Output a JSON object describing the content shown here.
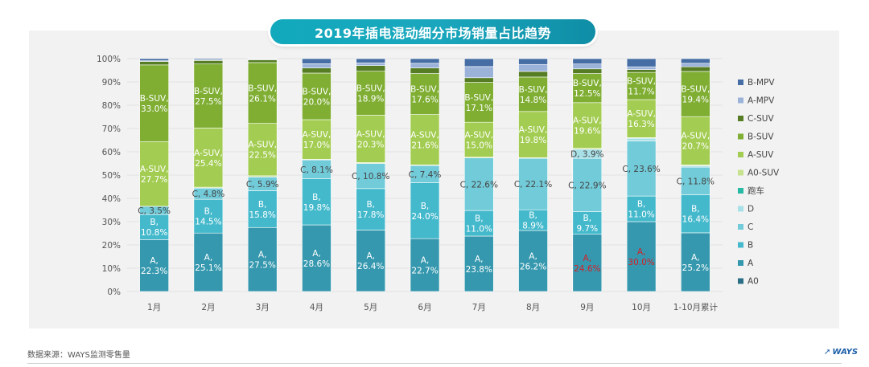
{
  "title": "2019年插电混动细分市场销量占比趋势",
  "source": "数据来源：WAYS监测零售量",
  "logo": "WAYS",
  "chart_data": {
    "type": "bar",
    "stacked": true,
    "normalized": true,
    "title": "2019年插电混动细分市场销量占比趋势",
    "xlabel": "",
    "ylabel": "",
    "ylim": [
      0,
      100
    ],
    "yticks": [
      "0%",
      "10%",
      "20%",
      "30%",
      "40%",
      "50%",
      "60%",
      "70%",
      "80%",
      "90%",
      "100%"
    ],
    "categories": [
      "1月",
      "2月",
      "3月",
      "4月",
      "5月",
      "6月",
      "7月",
      "8月",
      "9月",
      "10月",
      "1-10月累计"
    ],
    "legend_position": "right",
    "legend": [
      "B-MPV",
      "A-MPV",
      "C-SUV",
      "B-SUV",
      "A-SUV",
      "A0-SUV",
      "跑车",
      "D",
      "C",
      "B",
      "A",
      "A0"
    ],
    "series": [
      {
        "name": "A0",
        "color": "#2b6f86",
        "values": [
          0,
          0,
          0,
          0,
          0,
          0,
          0,
          0,
          0,
          0,
          0
        ]
      },
      {
        "name": "A",
        "color": "#3598ae",
        "values": [
          22.3,
          25.1,
          27.5,
          28.6,
          26.4,
          22.7,
          23.8,
          26.2,
          24.6,
          30.0,
          25.2
        ]
      },
      {
        "name": "B",
        "color": "#45b9cc",
        "values": [
          10.8,
          14.5,
          15.8,
          19.8,
          17.8,
          24.0,
          11.0,
          8.9,
          9.7,
          11.0,
          16.4
        ]
      },
      {
        "name": "C",
        "color": "#72cbd9",
        "values": [
          3.5,
          4.8,
          5.9,
          8.1,
          10.8,
          7.4,
          22.6,
          22.1,
          22.9,
          23.6,
          11.8
        ]
      },
      {
        "name": "D",
        "color": "#a8e0e8",
        "values": [
          0,
          0,
          0,
          0,
          0,
          0,
          0,
          0,
          3.9,
          1.2,
          0.6
        ]
      },
      {
        "name": "跑车",
        "color": "#26b9a3",
        "values": [
          0,
          0,
          0,
          0,
          0,
          0,
          0,
          0,
          0,
          0,
          0
        ]
      },
      {
        "name": "A0-SUV",
        "color": "#c7e28c",
        "values": [
          0,
          0.4,
          0.5,
          0.3,
          0.4,
          0.3,
          0.3,
          0.3,
          0.4,
          0.3,
          0.4
        ]
      },
      {
        "name": "A-SUV",
        "color": "#a3cc52",
        "values": [
          27.7,
          25.4,
          22.5,
          17.0,
          20.3,
          21.6,
          15.0,
          19.8,
          19.6,
          16.3,
          20.7
        ]
      },
      {
        "name": "B-SUV",
        "color": "#7fae33",
        "values": [
          33.0,
          27.5,
          26.1,
          20.0,
          18.9,
          17.6,
          17.1,
          14.8,
          12.5,
          11.7,
          19.4
        ]
      },
      {
        "name": "C-SUV",
        "color": "#567d24",
        "values": [
          1.5,
          1.5,
          1.2,
          2.2,
          2.4,
          2.4,
          2.0,
          2.4,
          2.0,
          1.2,
          2.0
        ]
      },
      {
        "name": "A-MPV",
        "color": "#9cb3d9",
        "values": [
          0.3,
          0.3,
          0.3,
          1.8,
          1.2,
          2.0,
          4.8,
          3.0,
          2.1,
          1.2,
          1.5
        ]
      },
      {
        "name": "B-MPV",
        "color": "#466ea4",
        "values": [
          0.9,
          0.5,
          0.2,
          2.2,
          1.8,
          2.0,
          3.4,
          2.5,
          2.3,
          3.5,
          2.0
        ]
      }
    ],
    "bar_labels": [
      {
        "category": "1月",
        "items": [
          {
            "series": "A",
            "text": "A,\n22.3%"
          },
          {
            "series": "B",
            "text": "B,\n10.8%"
          },
          {
            "series": "C",
            "text": "C, 3.5%"
          },
          {
            "series": "A-SUV",
            "text": "A-SUV,\n27.7%"
          },
          {
            "series": "B-SUV",
            "text": "B-SUV,\n33.0%"
          }
        ]
      },
      {
        "category": "2月",
        "items": [
          {
            "series": "A",
            "text": "A,\n25.1%"
          },
          {
            "series": "B",
            "text": "B,\n14.5%"
          },
          {
            "series": "C",
            "text": "C, 4.8%"
          },
          {
            "series": "A-SUV",
            "text": "A-SUV,\n25.4%"
          },
          {
            "series": "B-SUV",
            "text": "B-SUV,\n27.5%"
          }
        ]
      },
      {
        "category": "3月",
        "items": [
          {
            "series": "A",
            "text": "A,\n27.5%"
          },
          {
            "series": "B",
            "text": "B,\n15.8%"
          },
          {
            "series": "C",
            "text": "C, 5.9%"
          },
          {
            "series": "A-SUV",
            "text": "A-SUV,\n22.5%"
          },
          {
            "series": "B-SUV",
            "text": "B-SUV,\n26.1%"
          }
        ]
      },
      {
        "category": "4月",
        "items": [
          {
            "series": "A",
            "text": "A,\n28.6%"
          },
          {
            "series": "B",
            "text": "B,\n19.8%"
          },
          {
            "series": "C",
            "text": "C, 8.1%"
          },
          {
            "series": "A-SUV",
            "text": "A-SUV,\n17.0%"
          },
          {
            "series": "B-SUV",
            "text": "B-SUV,\n20.0%"
          }
        ]
      },
      {
        "category": "5月",
        "items": [
          {
            "series": "A",
            "text": "A,\n26.4%"
          },
          {
            "series": "B",
            "text": "B,\n17.8%"
          },
          {
            "series": "C",
            "text": "C, 10.8%"
          },
          {
            "series": "A-SUV",
            "text": "A-SUV,\n20.3%"
          },
          {
            "series": "B-SUV",
            "text": "B-SUV,\n18.9%"
          }
        ]
      },
      {
        "category": "6月",
        "items": [
          {
            "series": "A",
            "text": "A,\n22.7%"
          },
          {
            "series": "B",
            "text": "B,\n24.0%"
          },
          {
            "series": "C",
            "text": "C, 7.4%"
          },
          {
            "series": "A-SUV",
            "text": "A-SUV,\n21.6%"
          },
          {
            "series": "B-SUV",
            "text": "B-SUV,\n17.6%"
          }
        ]
      },
      {
        "category": "7月",
        "items": [
          {
            "series": "A",
            "text": "A,\n23.8%"
          },
          {
            "series": "B",
            "text": "B,\n11.0%"
          },
          {
            "series": "C",
            "text": "C, 22.6%"
          },
          {
            "series": "A-SUV",
            "text": "A-SUV,\n15.0%"
          },
          {
            "series": "B-SUV",
            "text": "B-SUV,\n17.1%"
          }
        ]
      },
      {
        "category": "8月",
        "items": [
          {
            "series": "A",
            "text": "A,\n26.2%"
          },
          {
            "series": "B",
            "text": "B,\n8.9%"
          },
          {
            "series": "C",
            "text": "C, 22.1%"
          },
          {
            "series": "A-SUV",
            "text": "A-SUV,\n19.8%"
          },
          {
            "series": "B-SUV",
            "text": "B-SUV,\n14.8%"
          }
        ]
      },
      {
        "category": "9月",
        "items": [
          {
            "series": "A",
            "text": "A,\n24.6%",
            "color": "#d4202a"
          },
          {
            "series": "B",
            "text": "B,\n9.7%"
          },
          {
            "series": "C",
            "text": "C, 22.9%"
          },
          {
            "series": "D",
            "text": "D, 3.9%"
          },
          {
            "series": "A-SUV",
            "text": "A-SUV,\n19.6%"
          },
          {
            "series": "B-SUV",
            "text": "B-SUV,\n12.5%"
          }
        ]
      },
      {
        "category": "10月",
        "items": [
          {
            "series": "A",
            "text": "A,\n30.0%",
            "color": "#d4202a"
          },
          {
            "series": "B",
            "text": "B,\n11.0%"
          },
          {
            "series": "C",
            "text": "C, 23.6%"
          },
          {
            "series": "A-SUV",
            "text": "A-SUV,\n16.3%"
          },
          {
            "series": "B-SUV",
            "text": "B-SUV,\n11.7%"
          }
        ]
      },
      {
        "category": "1-10月累计",
        "items": [
          {
            "series": "A",
            "text": "A,\n25.2%"
          },
          {
            "series": "B",
            "text": "B,\n16.4%"
          },
          {
            "series": "C",
            "text": "C, 11.8%"
          },
          {
            "series": "A-SUV",
            "text": "A-SUV,\n20.7%"
          },
          {
            "series": "B-SUV",
            "text": "B-SUV,\n19.4%"
          }
        ]
      }
    ]
  }
}
